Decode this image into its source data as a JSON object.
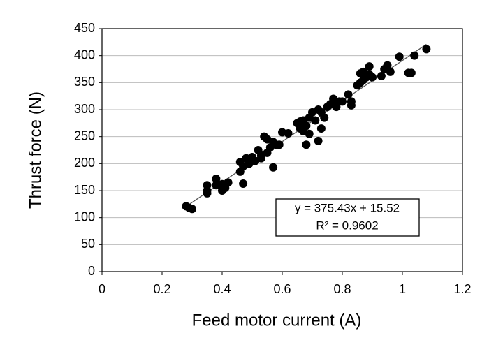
{
  "chart_data": {
    "type": "scatter",
    "x_label": "Feed motor current (A)",
    "y_label": "Thrust force (N)",
    "series": [
      {
        "color": "#000000",
        "x": [
          0.28,
          0.29,
          0.3,
          0.35,
          0.35,
          0.35,
          0.38,
          0.38,
          0.4,
          0.4,
          0.41,
          0.42,
          0.46,
          0.46,
          0.47,
          0.47,
          0.48,
          0.49,
          0.5,
          0.51,
          0.52,
          0.53,
          0.53,
          0.54,
          0.55,
          0.55,
          0.56,
          0.57,
          0.57,
          0.58,
          0.59,
          0.6,
          0.62,
          0.65,
          0.66,
          0.66,
          0.67,
          0.67,
          0.68,
          0.68,
          0.69,
          0.69,
          0.7,
          0.71,
          0.72,
          0.72,
          0.73,
          0.73,
          0.74,
          0.75,
          0.76,
          0.77,
          0.78,
          0.79,
          0.8,
          0.82,
          0.83,
          0.83,
          0.85,
          0.86,
          0.86,
          0.87,
          0.87,
          0.88,
          0.89,
          0.89,
          0.9,
          0.93,
          0.94,
          0.95,
          0.96,
          0.99,
          1.02,
          1.03,
          1.04,
          1.08
        ],
        "values": [
          121,
          118,
          116,
          160,
          150,
          145,
          172,
          160,
          162,
          150,
          155,
          165,
          203,
          185,
          163,
          195,
          210,
          200,
          212,
          205,
          225,
          215,
          210,
          250,
          245,
          220,
          230,
          240,
          193,
          235,
          235,
          258,
          256,
          275,
          278,
          265,
          260,
          280,
          235,
          270,
          285,
          255,
          295,
          280,
          300,
          242,
          265,
          295,
          285,
          305,
          310,
          320,
          305,
          315,
          315,
          328,
          315,
          308,
          345,
          367,
          350,
          370,
          355,
          360,
          365,
          380,
          360,
          362,
          375,
          382,
          370,
          398,
          368,
          368,
          400,
          412
        ]
      }
    ],
    "trendline": {
      "slope": 375.43,
      "intercept": 15.52,
      "color": "#555555"
    },
    "annotation": [
      "y = 375.43x + 15.52",
      "R² = 0.9602"
    ],
    "xlim": [
      0,
      1.2
    ],
    "xticks": [
      0,
      0.2,
      0.4,
      0.6,
      0.8,
      1,
      1.2
    ],
    "ylim": [
      0,
      450
    ],
    "yticks": [
      0,
      50,
      100,
      150,
      200,
      250,
      300,
      350,
      400,
      450
    ],
    "grid": true
  }
}
